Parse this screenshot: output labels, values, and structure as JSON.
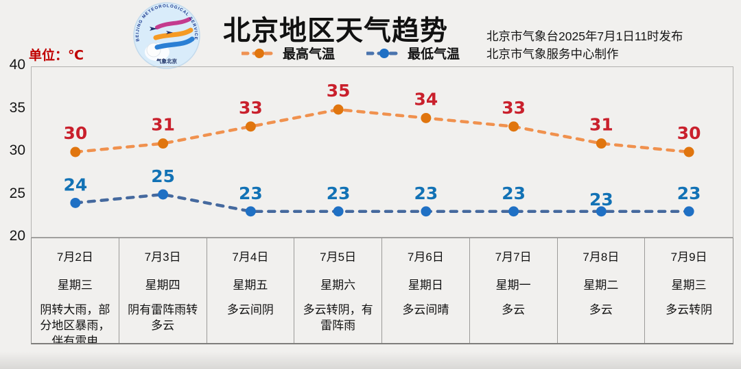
{
  "page": {
    "background": "#f1f0ee"
  },
  "header": {
    "title": "北京地区天气趋势",
    "issuer_line1": "北京市气象台2025年7月1日11时发布",
    "issuer_line2": "北京市气象服务中心制作",
    "unit_label": "单位：℃",
    "logo": {
      "ring_text": "BEIJING METEOROLOGICAL SERVICE",
      "bottom_text": "气象北京"
    }
  },
  "legend": [
    {
      "label": "最高气温",
      "line_color": "#ef9252",
      "marker_color": "#e0750e"
    },
    {
      "label": "最低气温",
      "line_color": "#4a74ad",
      "marker_color": "#1f70c4"
    }
  ],
  "chart_data": {
    "type": "line",
    "title": "北京地区天气趋势",
    "unit": "℃",
    "categories": [
      "7月2日",
      "7月3日",
      "7月4日",
      "7月5日",
      "7月6日",
      "7月7日",
      "7月8日",
      "7月9日"
    ],
    "weekdays": [
      "星期三",
      "星期四",
      "星期五",
      "星期六",
      "星期日",
      "星期一",
      "星期二",
      "星期三"
    ],
    "weather": [
      "阴转大雨，部分地区暴雨，伴有雷电",
      "阴有雷阵雨转多云",
      "多云间阴",
      "多云转阴，有雷阵雨",
      "多云间晴",
      "多云",
      "多云",
      "多云转阴"
    ],
    "series": [
      {
        "name": "最高气温",
        "values": [
          30,
          31,
          33,
          35,
          34,
          33,
          31,
          30
        ],
        "line_color": "#f0914e",
        "marker_color": "#e0750e",
        "label_color": "#c9202c",
        "label_offsets": [
          0,
          0,
          0,
          0,
          0,
          0,
          0,
          0
        ]
      },
      {
        "name": "最低气温",
        "values": [
          24,
          25,
          23,
          23,
          23,
          23,
          23,
          23
        ],
        "line_color": "#45699e",
        "marker_color": "#1f70c4",
        "label_color": "#1272b5",
        "label_offsets": [
          0,
          0,
          0,
          0,
          0,
          0,
          9,
          0
        ]
      }
    ],
    "ylim": [
      20,
      40
    ],
    "yticks": [
      40,
      35,
      30,
      25,
      20
    ],
    "grid": false,
    "legend_position": "top"
  }
}
